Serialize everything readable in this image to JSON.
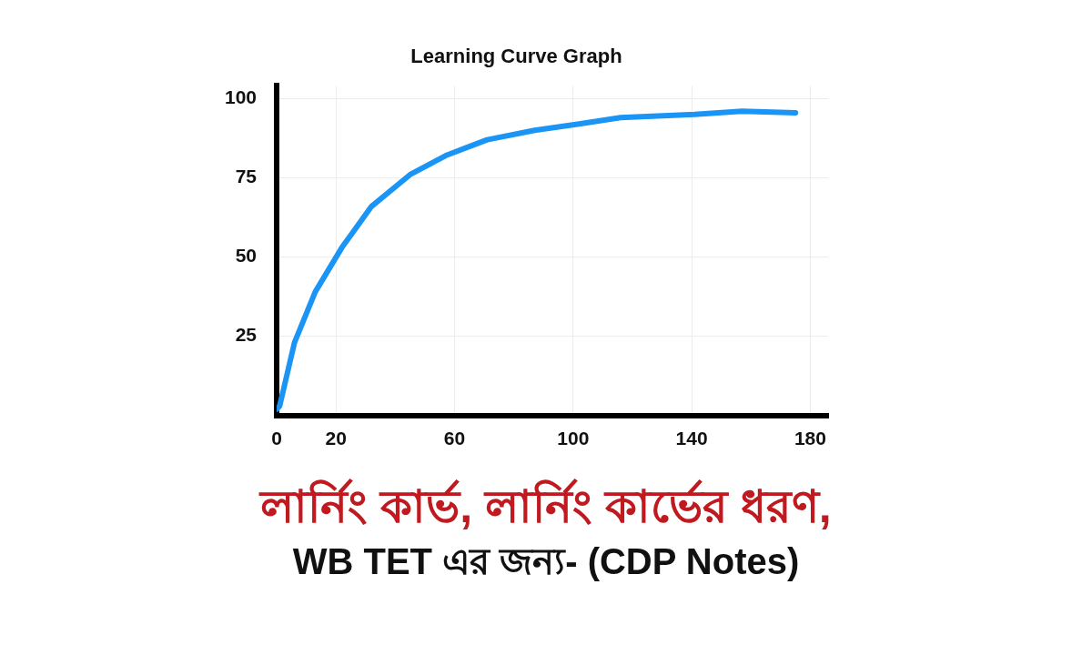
{
  "chart_data": {
    "type": "line",
    "title": "Learning Curve Graph",
    "x": [
      0,
      1,
      6,
      13,
      22,
      32,
      45,
      57,
      71,
      87,
      102,
      116,
      141,
      157,
      175
    ],
    "series": [
      {
        "color": "#1a94f5",
        "values": [
          2,
          3,
          23,
          39,
          53,
          66,
          76,
          82,
          87,
          90,
          92,
          94,
          95,
          96,
          95.5
        ]
      }
    ],
    "xlim": [
      0,
      186
    ],
    "xticks": [
      0,
      20,
      60,
      100,
      140,
      180
    ],
    "ylim": [
      0,
      104
    ],
    "yticks": [
      25,
      50,
      75,
      100
    ],
    "grid": true,
    "legend": false,
    "marker": "none",
    "line_style": "solid",
    "annotations": [
      "লার্নিং কার্ভ, লার্নিং কার্ভের ধরণ,",
      "WB TET এর জন্য- (CDP Notes)"
    ]
  }
}
